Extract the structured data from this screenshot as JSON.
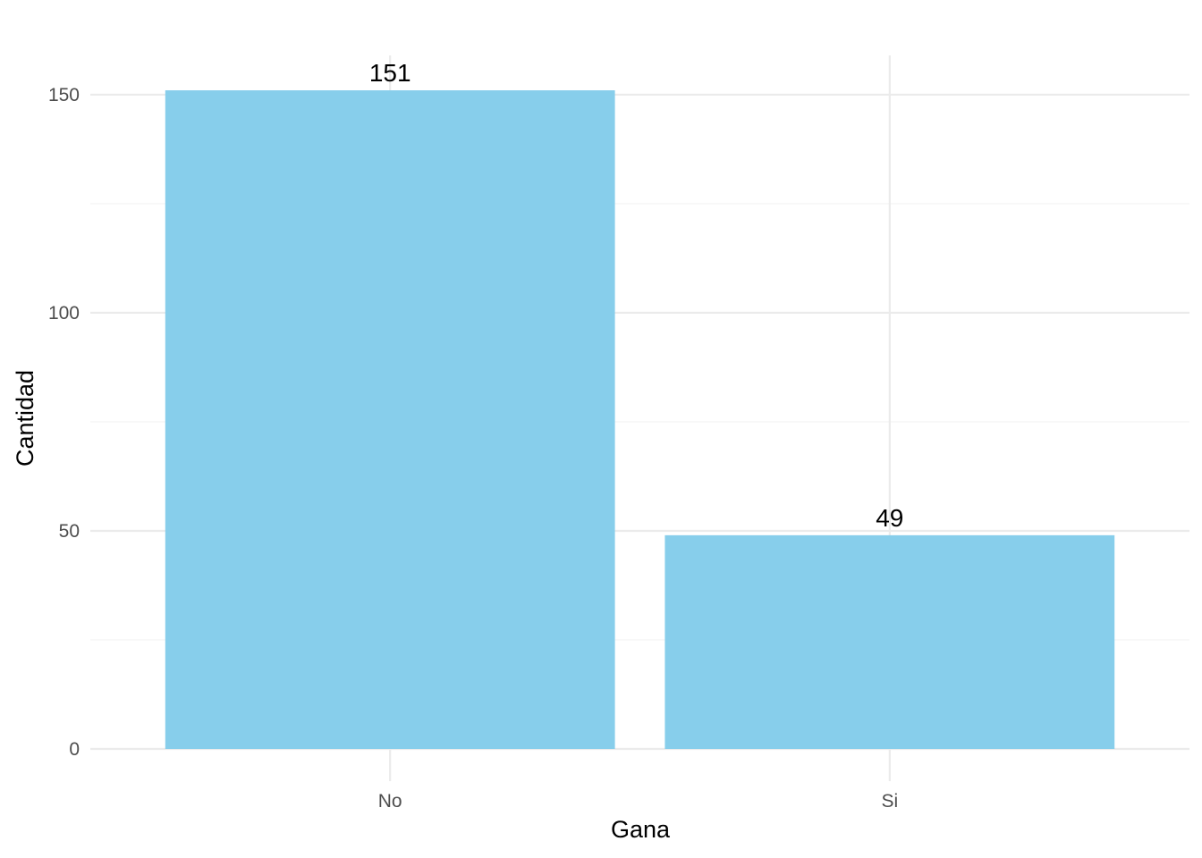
{
  "chart_data": {
    "type": "bar",
    "categories": [
      "No",
      "Si"
    ],
    "values": [
      151,
      49
    ],
    "data_labels": [
      "151",
      "49"
    ],
    "xlabel": "Gana",
    "ylabel": "Cantidad",
    "ylim": [
      0,
      159
    ],
    "y_ticks": [
      0,
      50,
      100,
      150
    ],
    "y_tick_labels": [
      "0",
      "50",
      "100",
      "150"
    ],
    "grid": true,
    "legend": "none",
    "bar_color": "#87CEEB"
  }
}
